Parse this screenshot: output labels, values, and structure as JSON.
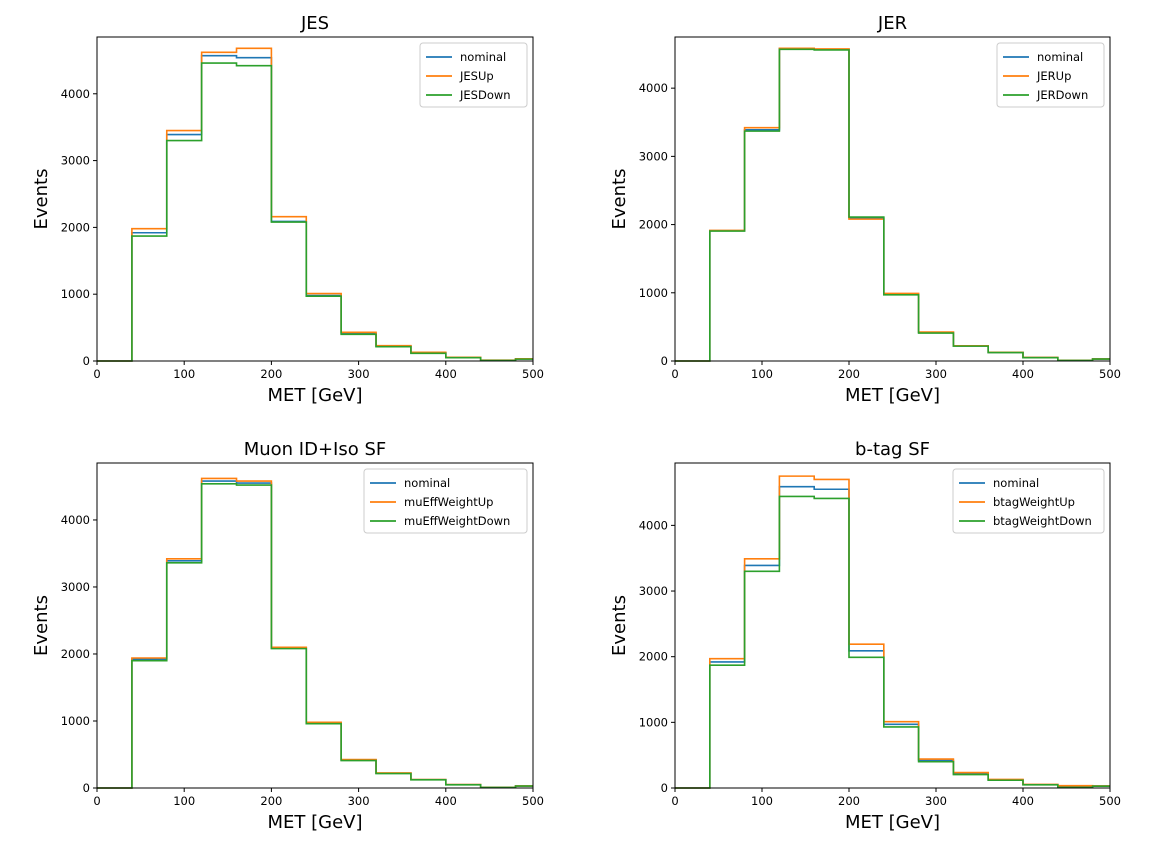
{
  "figure": {
    "colors": {
      "nominal": "#1f77b4",
      "up": "#ff7f0e",
      "down": "#2ca02c"
    }
  },
  "chart_data": [
    {
      "type": "line",
      "title": "JES",
      "xlabel": "MET [GeV]",
      "ylabel": "Events",
      "xlim": [
        0,
        500
      ],
      "ylim": [
        0,
        4850
      ],
      "xticks": [
        "0",
        "100",
        "200",
        "300",
        "400",
        "500"
      ],
      "xtick_values": [
        0,
        100,
        200,
        300,
        400,
        500
      ],
      "yticks": [
        "0",
        "1000",
        "2000",
        "3000",
        "4000"
      ],
      "ytick_values": [
        0,
        1000,
        2000,
        3000,
        4000
      ],
      "bin_edges": [
        0,
        40,
        80,
        120,
        160,
        200,
        240,
        280,
        320,
        360,
        400,
        440,
        480,
        500
      ],
      "legend": "top-right",
      "grid": false,
      "series": [
        {
          "name": "nominal",
          "color": "#1f77b4",
          "values": [
            0,
            1920,
            3390,
            4570,
            4540,
            2090,
            980,
            415,
            220,
            120,
            50,
            10,
            30
          ]
        },
        {
          "name": "JESUp",
          "color": "#ff7f0e",
          "values": [
            0,
            1980,
            3450,
            4620,
            4680,
            2160,
            1010,
            430,
            230,
            130,
            55,
            12,
            32
          ]
        },
        {
          "name": "JESDown",
          "color": "#2ca02c",
          "values": [
            0,
            1870,
            3300,
            4460,
            4420,
            2080,
            970,
            400,
            215,
            115,
            50,
            8,
            28
          ]
        }
      ]
    },
    {
      "type": "line",
      "title": "JER",
      "xlabel": "MET [GeV]",
      "ylabel": "Events",
      "xlim": [
        0,
        500
      ],
      "ylim": [
        0,
        4750
      ],
      "xticks": [
        "0",
        "100",
        "200",
        "300",
        "400",
        "500"
      ],
      "xtick_values": [
        0,
        100,
        200,
        300,
        400,
        500
      ],
      "yticks": [
        "0",
        "1000",
        "2000",
        "3000",
        "4000"
      ],
      "ytick_values": [
        0,
        1000,
        2000,
        3000,
        4000
      ],
      "bin_edges": [
        0,
        40,
        80,
        120,
        160,
        200,
        240,
        280,
        320,
        360,
        400,
        440,
        480,
        500
      ],
      "legend": "top-right",
      "grid": false,
      "series": [
        {
          "name": "nominal",
          "color": "#1f77b4",
          "values": [
            0,
            1910,
            3390,
            4580,
            4570,
            2100,
            975,
            420,
            220,
            125,
            50,
            10,
            30
          ]
        },
        {
          "name": "JERUp",
          "color": "#ff7f0e",
          "values": [
            0,
            1915,
            3420,
            4585,
            4575,
            2080,
            990,
            425,
            222,
            127,
            52,
            11,
            31
          ]
        },
        {
          "name": "JERDown",
          "color": "#2ca02c",
          "values": [
            0,
            1905,
            3370,
            4570,
            4560,
            2110,
            970,
            410,
            218,
            123,
            49,
            9,
            29
          ]
        }
      ]
    },
    {
      "type": "line",
      "title": "Muon ID+Iso SF",
      "xlabel": "MET [GeV]",
      "ylabel": "Events",
      "xlim": [
        0,
        500
      ],
      "ylim": [
        0,
        4850
      ],
      "xticks": [
        "0",
        "100",
        "200",
        "300",
        "400",
        "500"
      ],
      "xtick_values": [
        0,
        100,
        200,
        300,
        400,
        500
      ],
      "yticks": [
        "0",
        "1000",
        "2000",
        "3000",
        "4000"
      ],
      "ytick_values": [
        0,
        1000,
        2000,
        3000,
        4000
      ],
      "bin_edges": [
        0,
        40,
        80,
        120,
        160,
        200,
        240,
        280,
        320,
        360,
        400,
        440,
        480,
        500
      ],
      "legend": "top-right",
      "grid": false,
      "series": [
        {
          "name": "nominal",
          "color": "#1f77b4",
          "values": [
            0,
            1920,
            3390,
            4580,
            4550,
            2090,
            970,
            420,
            220,
            125,
            50,
            10,
            30
          ]
        },
        {
          "name": "muEffWeightUp",
          "color": "#ff7f0e",
          "values": [
            0,
            1940,
            3420,
            4620,
            4580,
            2100,
            980,
            425,
            225,
            127,
            52,
            11,
            31
          ]
        },
        {
          "name": "muEffWeightDown",
          "color": "#2ca02c",
          "values": [
            0,
            1900,
            3360,
            4540,
            4520,
            2080,
            960,
            410,
            215,
            122,
            48,
            9,
            29
          ]
        }
      ]
    },
    {
      "type": "line",
      "title": "b-tag SF",
      "xlabel": "MET [GeV]",
      "ylabel": "Events",
      "xlim": [
        0,
        500
      ],
      "ylim": [
        0,
        4950
      ],
      "xticks": [
        "0",
        "100",
        "200",
        "300",
        "400",
        "500"
      ],
      "xtick_values": [
        0,
        100,
        200,
        300,
        400,
        500
      ],
      "yticks": [
        "0",
        "1000",
        "2000",
        "3000",
        "4000"
      ],
      "ytick_values": [
        0,
        1000,
        2000,
        3000,
        4000
      ],
      "bin_edges": [
        0,
        40,
        80,
        120,
        160,
        200,
        240,
        280,
        320,
        360,
        400,
        440,
        480,
        500
      ],
      "legend": "top-right",
      "grid": false,
      "series": [
        {
          "name": "nominal",
          "color": "#1f77b4",
          "values": [
            0,
            1920,
            3390,
            4590,
            4550,
            2090,
            970,
            420,
            220,
            125,
            50,
            10,
            30
          ]
        },
        {
          "name": "btagWeightUp",
          "color": "#ff7f0e",
          "values": [
            0,
            1970,
            3490,
            4750,
            4700,
            2190,
            1010,
            440,
            235,
            130,
            55,
            35,
            32
          ]
        },
        {
          "name": "btagWeightDown",
          "color": "#2ca02c",
          "values": [
            0,
            1870,
            3300,
            4440,
            4410,
            1990,
            930,
            400,
            205,
            118,
            48,
            8,
            28
          ]
        }
      ]
    }
  ]
}
